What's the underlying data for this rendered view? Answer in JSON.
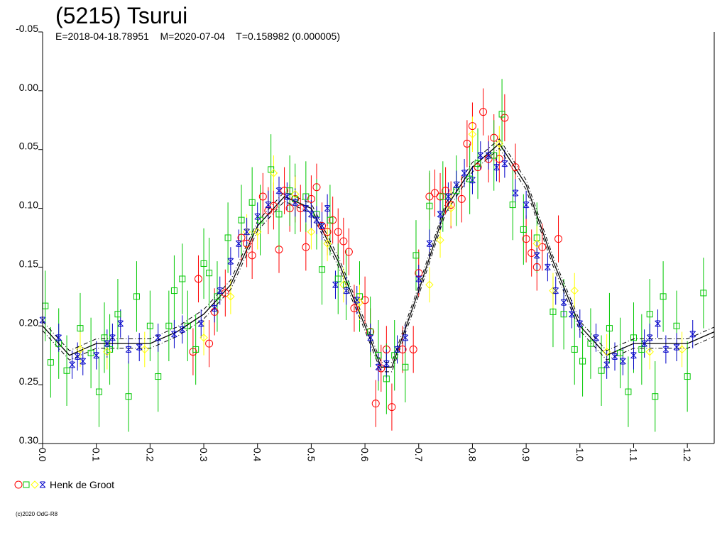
{
  "chart_data": {
    "type": "scatter",
    "title": "(5215) Tsurui",
    "subtitle": "E=2018-04-18.78951    M=2020-07-04    T=0.158982 (0.000005)",
    "xlim": [
      0.0,
      1.25
    ],
    "ylim": [
      -0.05,
      0.3
    ],
    "y_inverted": true,
    "x_ticks": [
      "0.0",
      "0.1",
      "0.2",
      "0.3",
      "0.4",
      "0.5",
      "0.6",
      "0.7",
      "0.8",
      "0.9",
      "1.0",
      "1.1",
      "1.2"
    ],
    "y_ticks": [
      "-0.05",
      "0.00",
      "0.05",
      "0.10",
      "0.15",
      "0.20",
      "0.25",
      "0.30"
    ],
    "grid": false,
    "legend_placement": "bottom-left",
    "legend": [
      {
        "label": "Henk de Groot"
      }
    ],
    "copyright": "(c)2020 OdG-R8",
    "fit_curve": {
      "x": [
        0.0,
        0.05,
        0.1,
        0.15,
        0.2,
        0.25,
        0.3,
        0.35,
        0.4,
        0.45,
        0.5,
        0.55,
        0.6,
        0.63,
        0.65,
        0.7,
        0.75,
        0.8,
        0.85,
        0.9,
        0.95,
        1.0,
        1.05,
        1.1,
        1.15,
        1.2,
        1.25
      ],
      "y": [
        0.2,
        0.225,
        0.215,
        0.215,
        0.215,
        0.205,
        0.19,
        0.165,
        0.115,
        0.09,
        0.1,
        0.145,
        0.2,
        0.235,
        0.235,
        0.17,
        0.1,
        0.065,
        0.045,
        0.08,
        0.145,
        0.2,
        0.225,
        0.215,
        0.215,
        0.215,
        0.205
      ],
      "band": 0.004
    },
    "series": [
      {
        "color": "#ff0000",
        "marker": "circle",
        "x": [
          0.28,
          0.29,
          0.31,
          0.32,
          0.34,
          0.37,
          0.38,
          0.39,
          0.41,
          0.42,
          0.43,
          0.44,
          0.45,
          0.46,
          0.47,
          0.48,
          0.49,
          0.5,
          0.51,
          0.52,
          0.53,
          0.54,
          0.55,
          0.56,
          0.57,
          0.58,
          0.6,
          0.61,
          0.62,
          0.63,
          0.64,
          0.65,
          0.67,
          0.69,
          0.7,
          0.72,
          0.73,
          0.74,
          0.75,
          0.76,
          0.78,
          0.79,
          0.8,
          0.81,
          0.82,
          0.83,
          0.84,
          0.85,
          0.86,
          0.88,
          0.9,
          0.91,
          0.92,
          0.93,
          0.96
        ],
        "y": [
          0.222,
          0.16,
          0.215,
          0.188,
          0.172,
          0.125,
          0.13,
          0.14,
          0.09,
          0.102,
          0.098,
          0.135,
          0.085,
          0.1,
          0.092,
          0.1,
          0.133,
          0.092,
          0.082,
          0.115,
          0.12,
          0.11,
          0.12,
          0.128,
          0.137,
          0.185,
          0.178,
          0.205,
          0.266,
          0.236,
          0.22,
          0.269,
          0.22,
          0.22,
          0.155,
          0.09,
          0.087,
          0.09,
          0.085,
          0.097,
          0.092,
          0.045,
          0.03,
          0.065,
          0.018,
          0.058,
          0.04,
          0.058,
          0.023,
          0.065,
          0.126,
          0.138,
          0.15,
          0.133,
          0.126
        ],
        "err": [
          0.02,
          0.02,
          0.02,
          0.02,
          0.02,
          0.02,
          0.02,
          0.02,
          0.02,
          0.02,
          0.02,
          0.02,
          0.02,
          0.02,
          0.02,
          0.02,
          0.02,
          0.02,
          0.02,
          0.02,
          0.02,
          0.02,
          0.02,
          0.02,
          0.02,
          0.02,
          0.02,
          0.02,
          0.02,
          0.02,
          0.02,
          0.02,
          0.02,
          0.02,
          0.02,
          0.02,
          0.02,
          0.02,
          0.02,
          0.02,
          0.02,
          0.02,
          0.02,
          0.02,
          0.02,
          0.02,
          0.02,
          0.02,
          0.02,
          0.02,
          0.02,
          0.02,
          0.02,
          0.02,
          0.02
        ]
      },
      {
        "color": "#00c800",
        "marker": "square",
        "x": [
          0.005,
          0.015,
          0.03,
          0.045,
          0.07,
          0.09,
          0.105,
          0.115,
          0.125,
          0.14,
          0.16,
          0.175,
          0.2,
          0.215,
          0.235,
          0.245,
          0.26,
          0.27,
          0.285,
          0.3,
          0.31,
          0.325,
          0.345,
          0.37,
          0.39,
          0.405,
          0.425,
          0.44,
          0.46,
          0.47,
          0.49,
          0.51,
          0.52,
          0.535,
          0.55,
          0.565,
          0.59,
          0.61,
          0.625,
          0.64,
          0.655,
          0.675,
          0.695,
          0.72,
          0.745,
          0.77,
          0.795,
          0.81,
          0.84,
          0.855,
          0.875,
          0.895,
          0.92,
          0.95,
          0.97,
          0.99,
          1.005,
          1.02,
          1.04,
          1.055,
          1.075,
          1.09,
          1.1,
          1.115,
          1.13,
          1.14,
          1.155,
          1.18,
          1.2,
          1.23
        ],
        "y": [
          0.183,
          0.231,
          0.215,
          0.238,
          0.202,
          0.223,
          0.256,
          0.21,
          0.22,
          0.19,
          0.26,
          0.175,
          0.2,
          0.243,
          0.2,
          0.17,
          0.16,
          0.2,
          0.22,
          0.147,
          0.155,
          0.175,
          0.125,
          0.11,
          0.095,
          0.11,
          0.067,
          0.105,
          0.085,
          0.092,
          0.09,
          0.105,
          0.152,
          0.11,
          0.16,
          0.165,
          0.175,
          0.205,
          0.225,
          0.245,
          0.225,
          0.235,
          0.14,
          0.098,
          0.09,
          0.085,
          0.075,
          0.062,
          0.055,
          0.02,
          0.097,
          0.118,
          0.125,
          0.188,
          0.19,
          0.22,
          0.23,
          0.215,
          0.238,
          0.202,
          0.223,
          0.256,
          0.21,
          0.22,
          0.19,
          0.26,
          0.175,
          0.2,
          0.243,
          0.172
        ],
        "err": [
          0.03,
          0.03,
          0.03,
          0.03,
          0.03,
          0.03,
          0.03,
          0.03,
          0.03,
          0.03,
          0.03,
          0.03,
          0.03,
          0.03,
          0.03,
          0.03,
          0.03,
          0.03,
          0.03,
          0.03,
          0.03,
          0.03,
          0.03,
          0.03,
          0.03,
          0.03,
          0.03,
          0.03,
          0.03,
          0.03,
          0.03,
          0.03,
          0.03,
          0.03,
          0.03,
          0.03,
          0.03,
          0.03,
          0.03,
          0.03,
          0.03,
          0.03,
          0.03,
          0.03,
          0.03,
          0.03,
          0.03,
          0.03,
          0.03,
          0.03,
          0.03,
          0.03,
          0.03,
          0.03,
          0.03,
          0.03,
          0.03,
          0.03,
          0.03,
          0.03,
          0.03,
          0.03,
          0.03,
          0.03,
          0.03,
          0.03,
          0.03,
          0.03,
          0.03,
          0.03
        ]
      },
      {
        "color": "#ffff00",
        "marker": "diamond",
        "x": [
          0.07,
          0.12,
          0.19,
          0.3,
          0.35,
          0.38,
          0.4,
          0.43,
          0.47,
          0.5,
          0.53,
          0.56,
          0.59,
          0.72,
          0.74,
          0.76,
          0.8,
          0.85,
          0.92,
          0.95,
          0.99,
          1.05,
          1.13,
          1.19
        ],
        "y": [
          0.22,
          0.222,
          0.22,
          0.21,
          0.175,
          0.12,
          0.12,
          0.07,
          0.088,
          0.12,
          0.13,
          0.165,
          0.18,
          0.165,
          0.127,
          0.1,
          0.037,
          0.045,
          0.13,
          0.17,
          0.17,
          0.222,
          0.222,
          0.22
        ],
        "err": [
          0.015,
          0.015,
          0.015,
          0.015,
          0.015,
          0.015,
          0.015,
          0.015,
          0.015,
          0.015,
          0.015,
          0.015,
          0.015,
          0.015,
          0.015,
          0.015,
          0.015,
          0.015,
          0.015,
          0.015,
          0.015,
          0.015,
          0.015,
          0.015
        ]
      },
      {
        "color": "#0000c8",
        "marker": "star",
        "x": [
          0.0,
          0.03,
          0.055,
          0.065,
          0.075,
          0.1,
          0.12,
          0.13,
          0.145,
          0.16,
          0.18,
          0.215,
          0.245,
          0.26,
          0.295,
          0.32,
          0.33,
          0.35,
          0.365,
          0.38,
          0.4,
          0.42,
          0.44,
          0.455,
          0.47,
          0.49,
          0.5,
          0.51,
          0.52,
          0.53,
          0.545,
          0.565,
          0.585,
          0.61,
          0.625,
          0.64,
          0.66,
          0.675,
          0.7,
          0.72,
          0.74,
          0.755,
          0.77,
          0.785,
          0.8,
          0.815,
          0.83,
          0.845,
          0.86,
          0.88,
          0.9,
          0.92,
          0.94,
          0.955,
          0.97,
          0.985,
          1.0,
          1.03,
          1.05,
          1.065,
          1.08,
          1.1,
          1.12,
          1.13,
          1.145,
          1.16,
          1.18,
          1.21
        ],
        "y": [
          0.195,
          0.21,
          0.233,
          0.226,
          0.23,
          0.225,
          0.215,
          0.21,
          0.198,
          0.22,
          0.218,
          0.21,
          0.207,
          0.203,
          0.198,
          0.185,
          0.17,
          0.145,
          0.13,
          0.12,
          0.107,
          0.097,
          0.085,
          0.09,
          0.095,
          0.1,
          0.105,
          0.11,
          0.115,
          0.1,
          0.165,
          0.17,
          0.178,
          0.21,
          0.235,
          0.232,
          0.22,
          0.21,
          0.16,
          0.13,
          0.105,
          0.09,
          0.08,
          0.07,
          0.076,
          0.055,
          0.055,
          0.065,
          0.062,
          0.087,
          0.097,
          0.14,
          0.15,
          0.17,
          0.18,
          0.19,
          0.198,
          0.21,
          0.233,
          0.226,
          0.23,
          0.225,
          0.215,
          0.21,
          0.198,
          0.22,
          0.218,
          0.207
        ],
        "err": [
          0.012,
          0.012,
          0.012,
          0.012,
          0.012,
          0.012,
          0.012,
          0.012,
          0.012,
          0.012,
          0.012,
          0.012,
          0.012,
          0.012,
          0.012,
          0.012,
          0.012,
          0.012,
          0.012,
          0.012,
          0.012,
          0.012,
          0.012,
          0.012,
          0.012,
          0.012,
          0.012,
          0.012,
          0.012,
          0.012,
          0.012,
          0.012,
          0.012,
          0.012,
          0.012,
          0.012,
          0.012,
          0.012,
          0.012,
          0.012,
          0.012,
          0.012,
          0.012,
          0.012,
          0.012,
          0.012,
          0.012,
          0.012,
          0.012,
          0.012,
          0.012,
          0.012,
          0.012,
          0.012,
          0.012,
          0.012,
          0.012,
          0.012,
          0.012,
          0.012,
          0.012,
          0.012,
          0.012,
          0.012,
          0.012,
          0.012,
          0.012,
          0.012
        ]
      }
    ]
  }
}
